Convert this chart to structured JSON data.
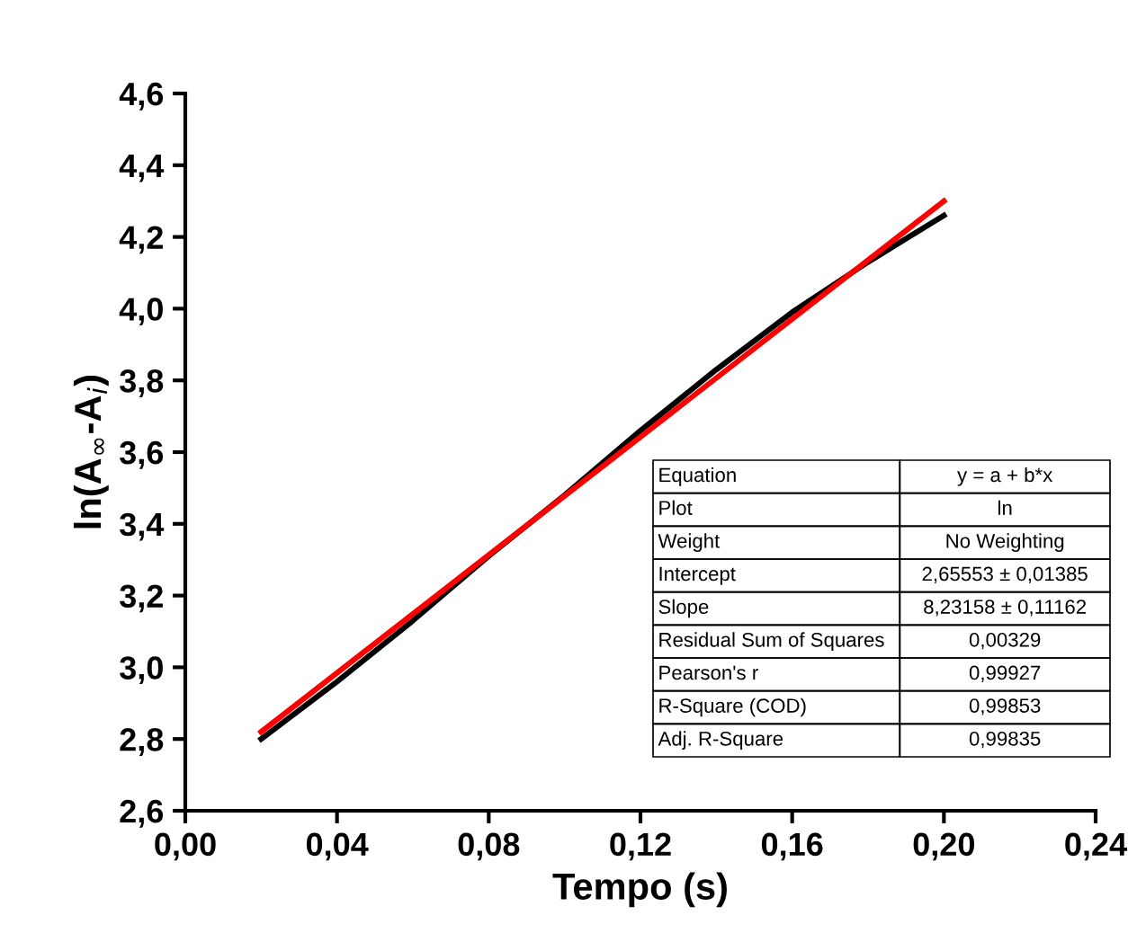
{
  "chart_data": {
    "type": "line",
    "xlabel": "Tempo (s)",
    "ylabel": "ln(A$_{∞}$-A$_{i}$)",
    "series": [
      {
        "color": "#000000",
        "x": [
          0.02,
          0.04,
          0.06,
          0.08,
          0.1,
          0.12,
          0.14,
          0.16,
          0.18,
          0.2
        ],
        "values": [
          2.8,
          2.96,
          3.13,
          3.31,
          3.48,
          3.66,
          3.83,
          3.99,
          4.13,
          4.26
        ]
      },
      {
        "color": "#ff0000",
        "x": [
          0.02,
          0.2
        ],
        "values": [
          2.82,
          4.3
        ]
      }
    ],
    "xlim": [
      0,
      0.24
    ],
    "ylim": [
      2.6,
      4.6
    ],
    "xticks": [
      {
        "value": 0,
        "label": "0,00"
      },
      {
        "value": 0.04,
        "label": "0,04"
      },
      {
        "value": 0.08,
        "label": "0,08"
      },
      {
        "value": 0.12,
        "label": "0,12"
      },
      {
        "value": 0.16,
        "label": "0,16"
      },
      {
        "value": 0.2,
        "label": "0,20"
      },
      {
        "value": 0.24,
        "label": "0,24"
      }
    ],
    "yticks": [
      {
        "value": 2.6,
        "label": "2,6"
      },
      {
        "value": 2.8,
        "label": "2,8"
      },
      {
        "value": 3.0,
        "label": "3,0"
      },
      {
        "value": 3.2,
        "label": "3,2"
      },
      {
        "value": 3.4,
        "label": "3,4"
      },
      {
        "value": 3.6,
        "label": "3,6"
      },
      {
        "value": 3.8,
        "label": "3,8"
      },
      {
        "value": 4.0,
        "label": "4,0"
      },
      {
        "value": 4.2,
        "label": "4,2"
      },
      {
        "value": 4.4,
        "label": "4,4"
      },
      {
        "value": 4.6,
        "label": "4,6"
      }
    ],
    "grid": false,
    "legend": false,
    "annotations": [
      "Equation",
      "y = a + b*x",
      "Plot",
      "ln",
      "Weight",
      "No Weighting",
      "Intercept",
      "2,65553 ± 0,01385",
      "Slope",
      "8,23158 ± 0,11162",
      "Residual Sum of Squares",
      "0,00329",
      "Pearson's r",
      "0,99927",
      "R-Square (COD)",
      "0,99853",
      "Adj. R-Square",
      "0,99835"
    ]
  }
}
